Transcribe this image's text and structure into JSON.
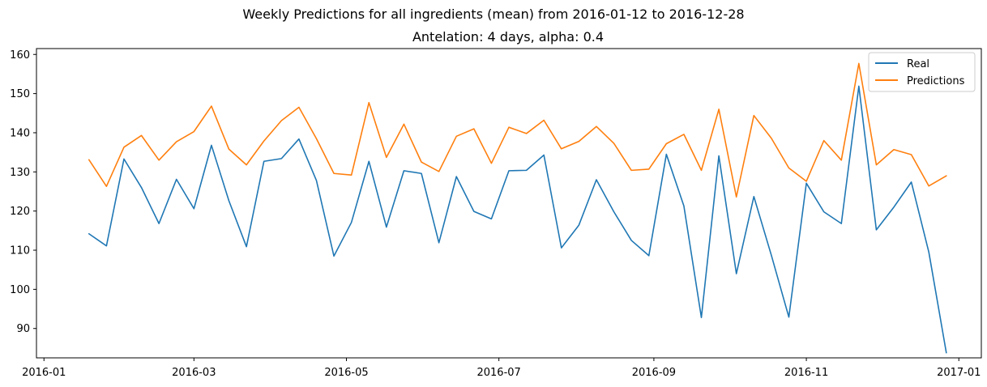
{
  "chart_data": {
    "type": "line",
    "title": "Weekly Predictions for all ingredients (mean) from 2016-01-12 to 2016-12-28",
    "subtitle": "Antelation: 4 days, alpha: 0.4",
    "xlabel": "",
    "ylabel": "",
    "x_axis_type": "date",
    "xlim": [
      "2015-12-29",
      "2017-01-10"
    ],
    "ylim": [
      82.5,
      161.5
    ],
    "x_ticks": [
      "2016-01",
      "2016-03",
      "2016-05",
      "2016-07",
      "2016-09",
      "2016-11",
      "2017-01"
    ],
    "x_tick_dates": [
      "2016-01-01",
      "2016-03-01",
      "2016-05-01",
      "2016-07-01",
      "2016-09-01",
      "2016-11-01",
      "2017-01-01"
    ],
    "y_ticks": [
      90,
      100,
      110,
      120,
      130,
      140,
      150,
      160
    ],
    "grid": false,
    "legend_position": "top-right",
    "x": [
      "2016-01-19",
      "2016-01-26",
      "2016-02-02",
      "2016-02-09",
      "2016-02-16",
      "2016-02-23",
      "2016-03-01",
      "2016-03-08",
      "2016-03-15",
      "2016-03-22",
      "2016-03-29",
      "2016-04-05",
      "2016-04-12",
      "2016-04-19",
      "2016-04-26",
      "2016-05-03",
      "2016-05-10",
      "2016-05-17",
      "2016-05-24",
      "2016-05-31",
      "2016-06-07",
      "2016-06-14",
      "2016-06-21",
      "2016-06-28",
      "2016-07-05",
      "2016-07-12",
      "2016-07-19",
      "2016-07-26",
      "2016-08-02",
      "2016-08-09",
      "2016-08-16",
      "2016-08-23",
      "2016-08-30",
      "2016-09-06",
      "2016-09-13",
      "2016-09-20",
      "2016-09-27",
      "2016-10-04",
      "2016-10-11",
      "2016-10-18",
      "2016-10-25",
      "2016-11-01",
      "2016-11-08",
      "2016-11-15",
      "2016-11-22",
      "2016-11-29",
      "2016-12-06",
      "2016-12-13",
      "2016-12-20",
      "2016-12-27"
    ],
    "series": [
      {
        "name": "Real",
        "color": "#1f77b4",
        "values": [
          114.2,
          111.1,
          133.3,
          126.0,
          116.8,
          128.1,
          120.6,
          136.8,
          122.6,
          110.9,
          132.7,
          133.4,
          138.4,
          127.8,
          108.5,
          117.1,
          132.7,
          115.9,
          130.3,
          129.6,
          111.9,
          128.8,
          119.9,
          118.0,
          130.3,
          130.4,
          134.3,
          110.6,
          116.4,
          128.0,
          119.8,
          112.5,
          108.6,
          134.5,
          121.3,
          92.8,
          134.1,
          104.0,
          123.7,
          108.7,
          92.9,
          127.1,
          119.8,
          116.8,
          151.9,
          115.2,
          121.0,
          127.4,
          109.5,
          83.8
        ]
      },
      {
        "name": "Predictions",
        "color": "#ff7f0e",
        "values": [
          133.1,
          126.3,
          136.3,
          139.3,
          133.0,
          137.7,
          140.3,
          146.8,
          135.8,
          131.8,
          137.9,
          143.1,
          146.5,
          138.5,
          129.6,
          129.2,
          147.7,
          133.7,
          142.2,
          132.5,
          130.1,
          139.1,
          141.0,
          132.2,
          141.4,
          139.8,
          143.2,
          135.9,
          137.8,
          141.6,
          137.3,
          130.4,
          130.7,
          137.2,
          139.6,
          130.4,
          146.0,
          123.6,
          144.4,
          138.6,
          131.0,
          127.6,
          138.0,
          133.0,
          157.7,
          131.8,
          135.7,
          134.4,
          126.4,
          129.0
        ]
      }
    ]
  }
}
